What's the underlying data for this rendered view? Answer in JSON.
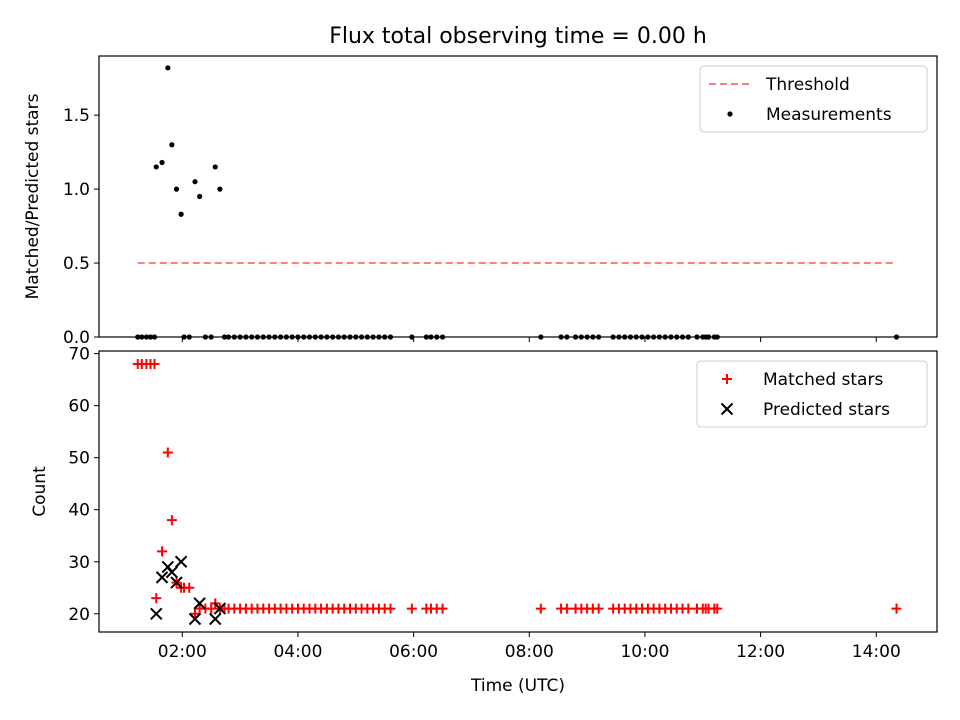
{
  "title": "Flux total observing time = 0.00 h",
  "chart_data": [
    {
      "type": "scatter",
      "panel": "top",
      "ylabel": "Matched/Predicted stars",
      "ylim": [
        0,
        1.9
      ],
      "xlim": [
        0.56,
        15.05
      ],
      "yticks": [
        0.0,
        0.5,
        1.0,
        1.5
      ],
      "ytick_labels": [
        "0.0",
        "0.5",
        "1.0",
        "1.5"
      ],
      "legend_position": "top-right",
      "series": [
        {
          "name": "Threshold",
          "kind": "dashed-line",
          "color": "#ff7f7f",
          "x": [
            1.23,
            14.32
          ],
          "y": [
            0.5,
            0.5
          ]
        },
        {
          "name": "Measurements",
          "kind": "point",
          "color": "#000000",
          "x": [
            1.55,
            1.65,
            1.75,
            1.82,
            1.9,
            1.98,
            2.22,
            2.3,
            2.57,
            2.65,
            1.23,
            1.3,
            1.38,
            1.45,
            1.52,
            2.03,
            2.12,
            2.4,
            2.5,
            2.73,
            2.8,
            2.9,
            3.0,
            3.1,
            3.2,
            3.3,
            3.4,
            3.5,
            3.6,
            3.7,
            3.8,
            3.9,
            4.0,
            4.1,
            4.2,
            4.3,
            4.4,
            4.5,
            4.6,
            4.7,
            4.8,
            4.9,
            5.0,
            5.1,
            5.2,
            5.3,
            5.4,
            5.5,
            5.6,
            5.97,
            6.22,
            6.3,
            6.4,
            6.5,
            8.2,
            8.55,
            8.65,
            8.8,
            8.9,
            9.0,
            9.1,
            9.2,
            9.45,
            9.55,
            9.65,
            9.75,
            9.85,
            9.95,
            10.05,
            10.15,
            10.25,
            10.35,
            10.45,
            10.55,
            10.65,
            10.75,
            10.9,
            11.0,
            11.05,
            11.1,
            11.2,
            11.25,
            14.35
          ],
          "y": [
            1.15,
            1.18,
            1.82,
            1.3,
            1.0,
            0.83,
            1.05,
            0.95,
            1.15,
            1.0,
            0,
            0,
            0,
            0,
            0,
            0,
            0,
            0,
            0,
            0,
            0,
            0,
            0,
            0,
            0,
            0,
            0,
            0,
            0,
            0,
            0,
            0,
            0,
            0,
            0,
            0,
            0,
            0,
            0,
            0,
            0,
            0,
            0,
            0,
            0,
            0,
            0,
            0,
            0,
            0,
            0,
            0,
            0,
            0,
            0,
            0,
            0,
            0,
            0,
            0,
            0,
            0,
            0,
            0,
            0,
            0,
            0,
            0,
            0,
            0,
            0,
            0,
            0,
            0,
            0,
            0,
            0,
            0,
            0,
            0,
            0,
            0,
            0
          ]
        }
      ]
    },
    {
      "type": "scatter",
      "panel": "bottom",
      "xlabel": "Time (UTC)",
      "ylabel": "Count",
      "ylim": [
        16.5,
        70.5
      ],
      "xlim": [
        0.56,
        15.05
      ],
      "yticks": [
        20,
        30,
        40,
        50,
        60,
        70
      ],
      "ytick_labels": [
        "20",
        "30",
        "40",
        "50",
        "60",
        "70"
      ],
      "xticks": [
        2,
        4,
        6,
        8,
        10,
        12,
        14
      ],
      "xtick_labels": [
        "02:00",
        "04:00",
        "06:00",
        "08:00",
        "10:00",
        "12:00",
        "14:00"
      ],
      "legend_position": "top-right",
      "series": [
        {
          "name": "Matched stars",
          "marker": "plus",
          "color": "#ff0000",
          "x": [
            1.23,
            1.3,
            1.38,
            1.45,
            1.52,
            1.55,
            1.65,
            1.75,
            1.82,
            1.9,
            1.98,
            2.03,
            2.12,
            2.22,
            2.3,
            2.4,
            2.5,
            2.57,
            2.65,
            2.73,
            2.8,
            2.9,
            3.0,
            3.1,
            3.2,
            3.3,
            3.4,
            3.5,
            3.6,
            3.7,
            3.8,
            3.9,
            4.0,
            4.1,
            4.2,
            4.3,
            4.4,
            4.5,
            4.6,
            4.7,
            4.8,
            4.9,
            5.0,
            5.1,
            5.2,
            5.3,
            5.4,
            5.5,
            5.6,
            5.97,
            6.22,
            6.3,
            6.4,
            6.5,
            8.2,
            8.55,
            8.65,
            8.8,
            8.9,
            9.0,
            9.1,
            9.2,
            9.45,
            9.55,
            9.65,
            9.75,
            9.85,
            9.95,
            10.05,
            10.15,
            10.25,
            10.35,
            10.45,
            10.55,
            10.65,
            10.75,
            10.9,
            11.0,
            11.05,
            11.1,
            11.2,
            11.25,
            14.35
          ],
          "y": [
            68,
            68,
            68,
            68,
            68,
            23,
            32,
            51,
            38,
            26,
            25,
            25,
            25,
            20,
            21,
            21,
            21,
            22,
            21,
            21,
            21,
            21,
            21,
            21,
            21,
            21,
            21,
            21,
            21,
            21,
            21,
            21,
            21,
            21,
            21,
            21,
            21,
            21,
            21,
            21,
            21,
            21,
            21,
            21,
            21,
            21,
            21,
            21,
            21,
            21,
            21,
            21,
            21,
            21,
            21,
            21,
            21,
            21,
            21,
            21,
            21,
            21,
            21,
            21,
            21,
            21,
            21,
            21,
            21,
            21,
            21,
            21,
            21,
            21,
            21,
            21,
            21,
            21,
            21,
            21,
            21,
            21,
            21
          ]
        },
        {
          "name": "Predicted stars",
          "marker": "x",
          "color": "#000000",
          "x": [
            1.55,
            1.65,
            1.75,
            1.82,
            1.9,
            1.98,
            2.22,
            2.3,
            2.57,
            2.65
          ],
          "y": [
            20,
            27,
            29,
            28,
            26,
            30,
            19,
            22,
            19,
            21
          ]
        }
      ]
    }
  ]
}
